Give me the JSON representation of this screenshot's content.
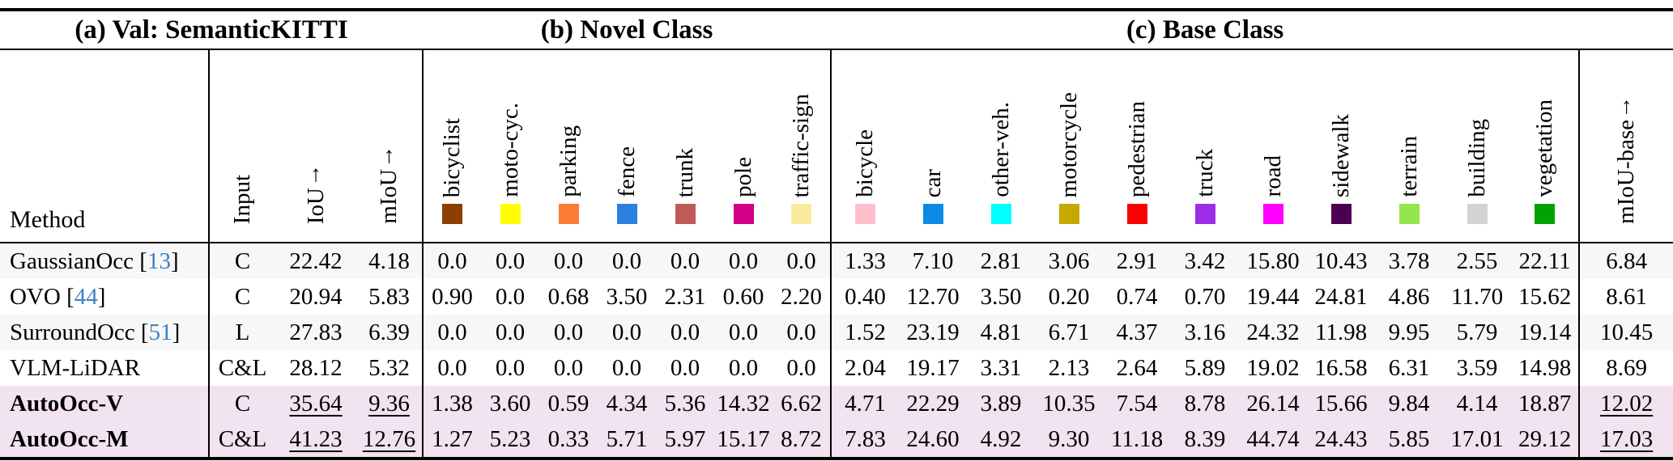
{
  "colors": {
    "citation": "#3E7FC4",
    "highlight_row": "#F1E3EF",
    "stripe_row": "#F7F7F7"
  },
  "table": {
    "captions": {
      "a": "(a) Val: SemanticKITTI",
      "b": "(b) Novel Class",
      "c": "(c) Base Class"
    },
    "method_header": "Method",
    "input_header": {
      "text": "Input"
    },
    "iou_header": {
      "text": "IoU",
      "arrow": "↑"
    },
    "miou_header": {
      "text": "mIoU",
      "arrow": "↑"
    },
    "miou_base_header": {
      "text": "mIoU-base",
      "arrow": "↑"
    },
    "novel_classes": [
      {
        "label": "bicyclist",
        "color": "#8B3E00"
      },
      {
        "label": "moto-cyc.",
        "color": "#FFFF00"
      },
      {
        "label": "parking",
        "color": "#FB7C35"
      },
      {
        "label": "fence",
        "color": "#2980DE"
      },
      {
        "label": "trunk",
        "color": "#BE5B58"
      },
      {
        "label": "pole",
        "color": "#D10087"
      },
      {
        "label": "traffic-sign",
        "color": "#FAEC9E"
      }
    ],
    "base_classes": [
      {
        "label": "bicycle",
        "color": "#FFC0CB"
      },
      {
        "label": "car",
        "color": "#0C8AE6"
      },
      {
        "label": "other-veh.",
        "color": "#00FFFF"
      },
      {
        "label": "motorcycle",
        "color": "#C6A800"
      },
      {
        "label": "pedestrian",
        "color": "#FF0000"
      },
      {
        "label": "truck",
        "color": "#9C2EE8"
      },
      {
        "label": "road",
        "color": "#FF00FF"
      },
      {
        "label": "sidewalk",
        "color": "#4B0052"
      },
      {
        "label": "terrain",
        "color": "#95E54E"
      },
      {
        "label": "building",
        "color": "#D3D3D3"
      },
      {
        "label": "vegetation",
        "color": "#00A303"
      }
    ],
    "rows": [
      {
        "method": "GaussianOcc",
        "cite": "13",
        "input": "C",
        "iou": "22.42",
        "miou": "4.18",
        "novel": [
          "0.0",
          "0.0",
          "0.0",
          "0.0",
          "0.0",
          "0.0",
          "0.0"
        ],
        "base": [
          "1.33",
          "7.10",
          "2.81",
          "3.06",
          "2.91",
          "3.42",
          "15.80",
          "10.43",
          "3.78",
          "2.55",
          "22.11"
        ],
        "miou_base": "6.84",
        "bold": false,
        "highlight": false,
        "underline": false
      },
      {
        "method": "OVO",
        "cite": "44",
        "input": "C",
        "iou": "20.94",
        "miou": "5.83",
        "novel": [
          "0.90",
          "0.0",
          "0.68",
          "3.50",
          "2.31",
          "0.60",
          "2.20"
        ],
        "base": [
          "0.40",
          "12.70",
          "3.50",
          "0.20",
          "0.74",
          "0.70",
          "19.44",
          "24.81",
          "4.86",
          "11.70",
          "15.62"
        ],
        "miou_base": "8.61",
        "bold": false,
        "highlight": false,
        "underline": false
      },
      {
        "method": "SurroundOcc",
        "cite": "51",
        "input": "L",
        "iou": "27.83",
        "miou": "6.39",
        "novel": [
          "0.0",
          "0.0",
          "0.0",
          "0.0",
          "0.0",
          "0.0",
          "0.0"
        ],
        "base": [
          "1.52",
          "23.19",
          "4.81",
          "6.71",
          "4.37",
          "3.16",
          "24.32",
          "11.98",
          "9.95",
          "5.79",
          "19.14"
        ],
        "miou_base": "10.45",
        "bold": false,
        "highlight": false,
        "underline": false
      },
      {
        "method": "VLM-LiDAR",
        "cite": "",
        "input": "C&L",
        "iou": "28.12",
        "miou": "5.32",
        "novel": [
          "0.0",
          "0.0",
          "0.0",
          "0.0",
          "0.0",
          "0.0",
          "0.0"
        ],
        "base": [
          "2.04",
          "19.17",
          "3.31",
          "2.13",
          "2.64",
          "5.89",
          "19.02",
          "16.58",
          "6.31",
          "3.59",
          "14.98"
        ],
        "miou_base": "8.69",
        "bold": false,
        "highlight": false,
        "underline": false
      },
      {
        "method": "AutoOcc-V",
        "cite": "",
        "input": "C",
        "iou": "35.64",
        "miou": "9.36",
        "novel": [
          "1.38",
          "3.60",
          "0.59",
          "4.34",
          "5.36",
          "14.32",
          "6.62"
        ],
        "base": [
          "4.71",
          "22.29",
          "3.89",
          "10.35",
          "7.54",
          "8.78",
          "26.14",
          "15.66",
          "9.84",
          "4.14",
          "18.87"
        ],
        "miou_base": "12.02",
        "bold": true,
        "highlight": true,
        "underline": true
      },
      {
        "method": "AutoOcc-M",
        "cite": "",
        "input": "C&L",
        "iou": "41.23",
        "miou": "12.76",
        "novel": [
          "1.27",
          "5.23",
          "0.33",
          "5.71",
          "5.97",
          "15.17",
          "8.72"
        ],
        "base": [
          "7.83",
          "24.60",
          "4.92",
          "9.30",
          "11.18",
          "8.39",
          "44.74",
          "24.43",
          "5.85",
          "17.01",
          "29.12"
        ],
        "miou_base": "17.03",
        "bold": true,
        "highlight": true,
        "underline": true
      }
    ]
  }
}
